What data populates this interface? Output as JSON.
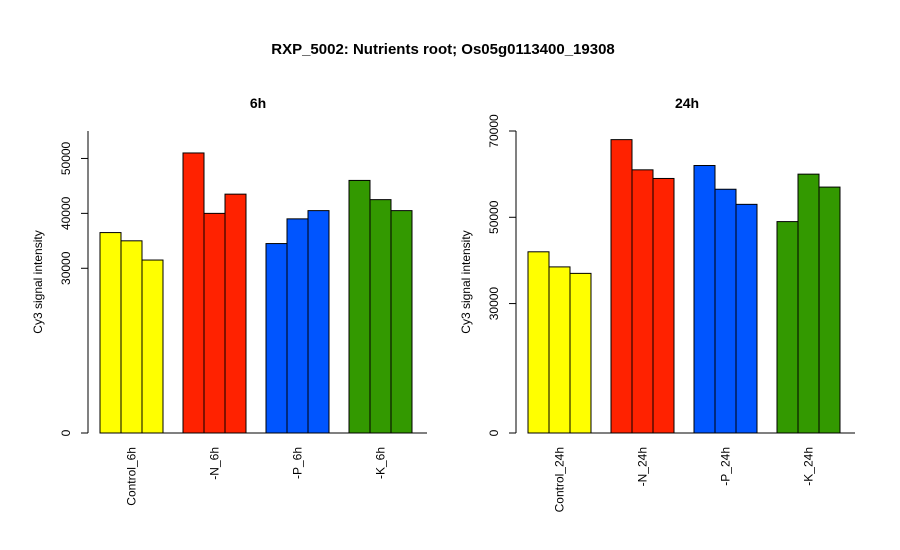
{
  "figure_title": "RXP_5002: Nutrients root; Os05g0113400_19308",
  "colors": {
    "Control": "#ffff00",
    "N": "#ff2200",
    "P": "#0055ff",
    "K": "#339900"
  },
  "chart_data": [
    {
      "type": "bar",
      "title": "6h",
      "xlabel": "",
      "ylabel": "Cy3 signal intensity",
      "ylim": [
        0,
        55000
      ],
      "yticks": [
        0,
        30000,
        40000,
        50000
      ],
      "groups": [
        {
          "label": "Control_6h",
          "color_key": "Control",
          "values": [
            36500,
            35000,
            31500
          ]
        },
        {
          "label": "-N_6h",
          "color_key": "N",
          "values": [
            51000,
            40000,
            43500
          ]
        },
        {
          "label": "-P_6h",
          "color_key": "P",
          "values": [
            34500,
            39000,
            40500
          ]
        },
        {
          "label": "-K_6h",
          "color_key": "K",
          "values": [
            46000,
            42500,
            40500
          ]
        }
      ]
    },
    {
      "type": "bar",
      "title": "24h",
      "xlabel": "",
      "ylabel": "Cy3 signal intensity",
      "ylim": [
        0,
        70000
      ],
      "yticks": [
        0,
        30000,
        50000,
        70000
      ],
      "groups": [
        {
          "label": "Control_24h",
          "color_key": "Control",
          "values": [
            42000,
            38500,
            37000
          ]
        },
        {
          "label": "-N_24h",
          "color_key": "N",
          "values": [
            68000,
            61000,
            59000
          ]
        },
        {
          "label": "-P_24h",
          "color_key": "P",
          "values": [
            62000,
            56500,
            53000
          ]
        },
        {
          "label": "-K_24h",
          "color_key": "K",
          "values": [
            49000,
            60000,
            57000
          ]
        }
      ]
    }
  ]
}
